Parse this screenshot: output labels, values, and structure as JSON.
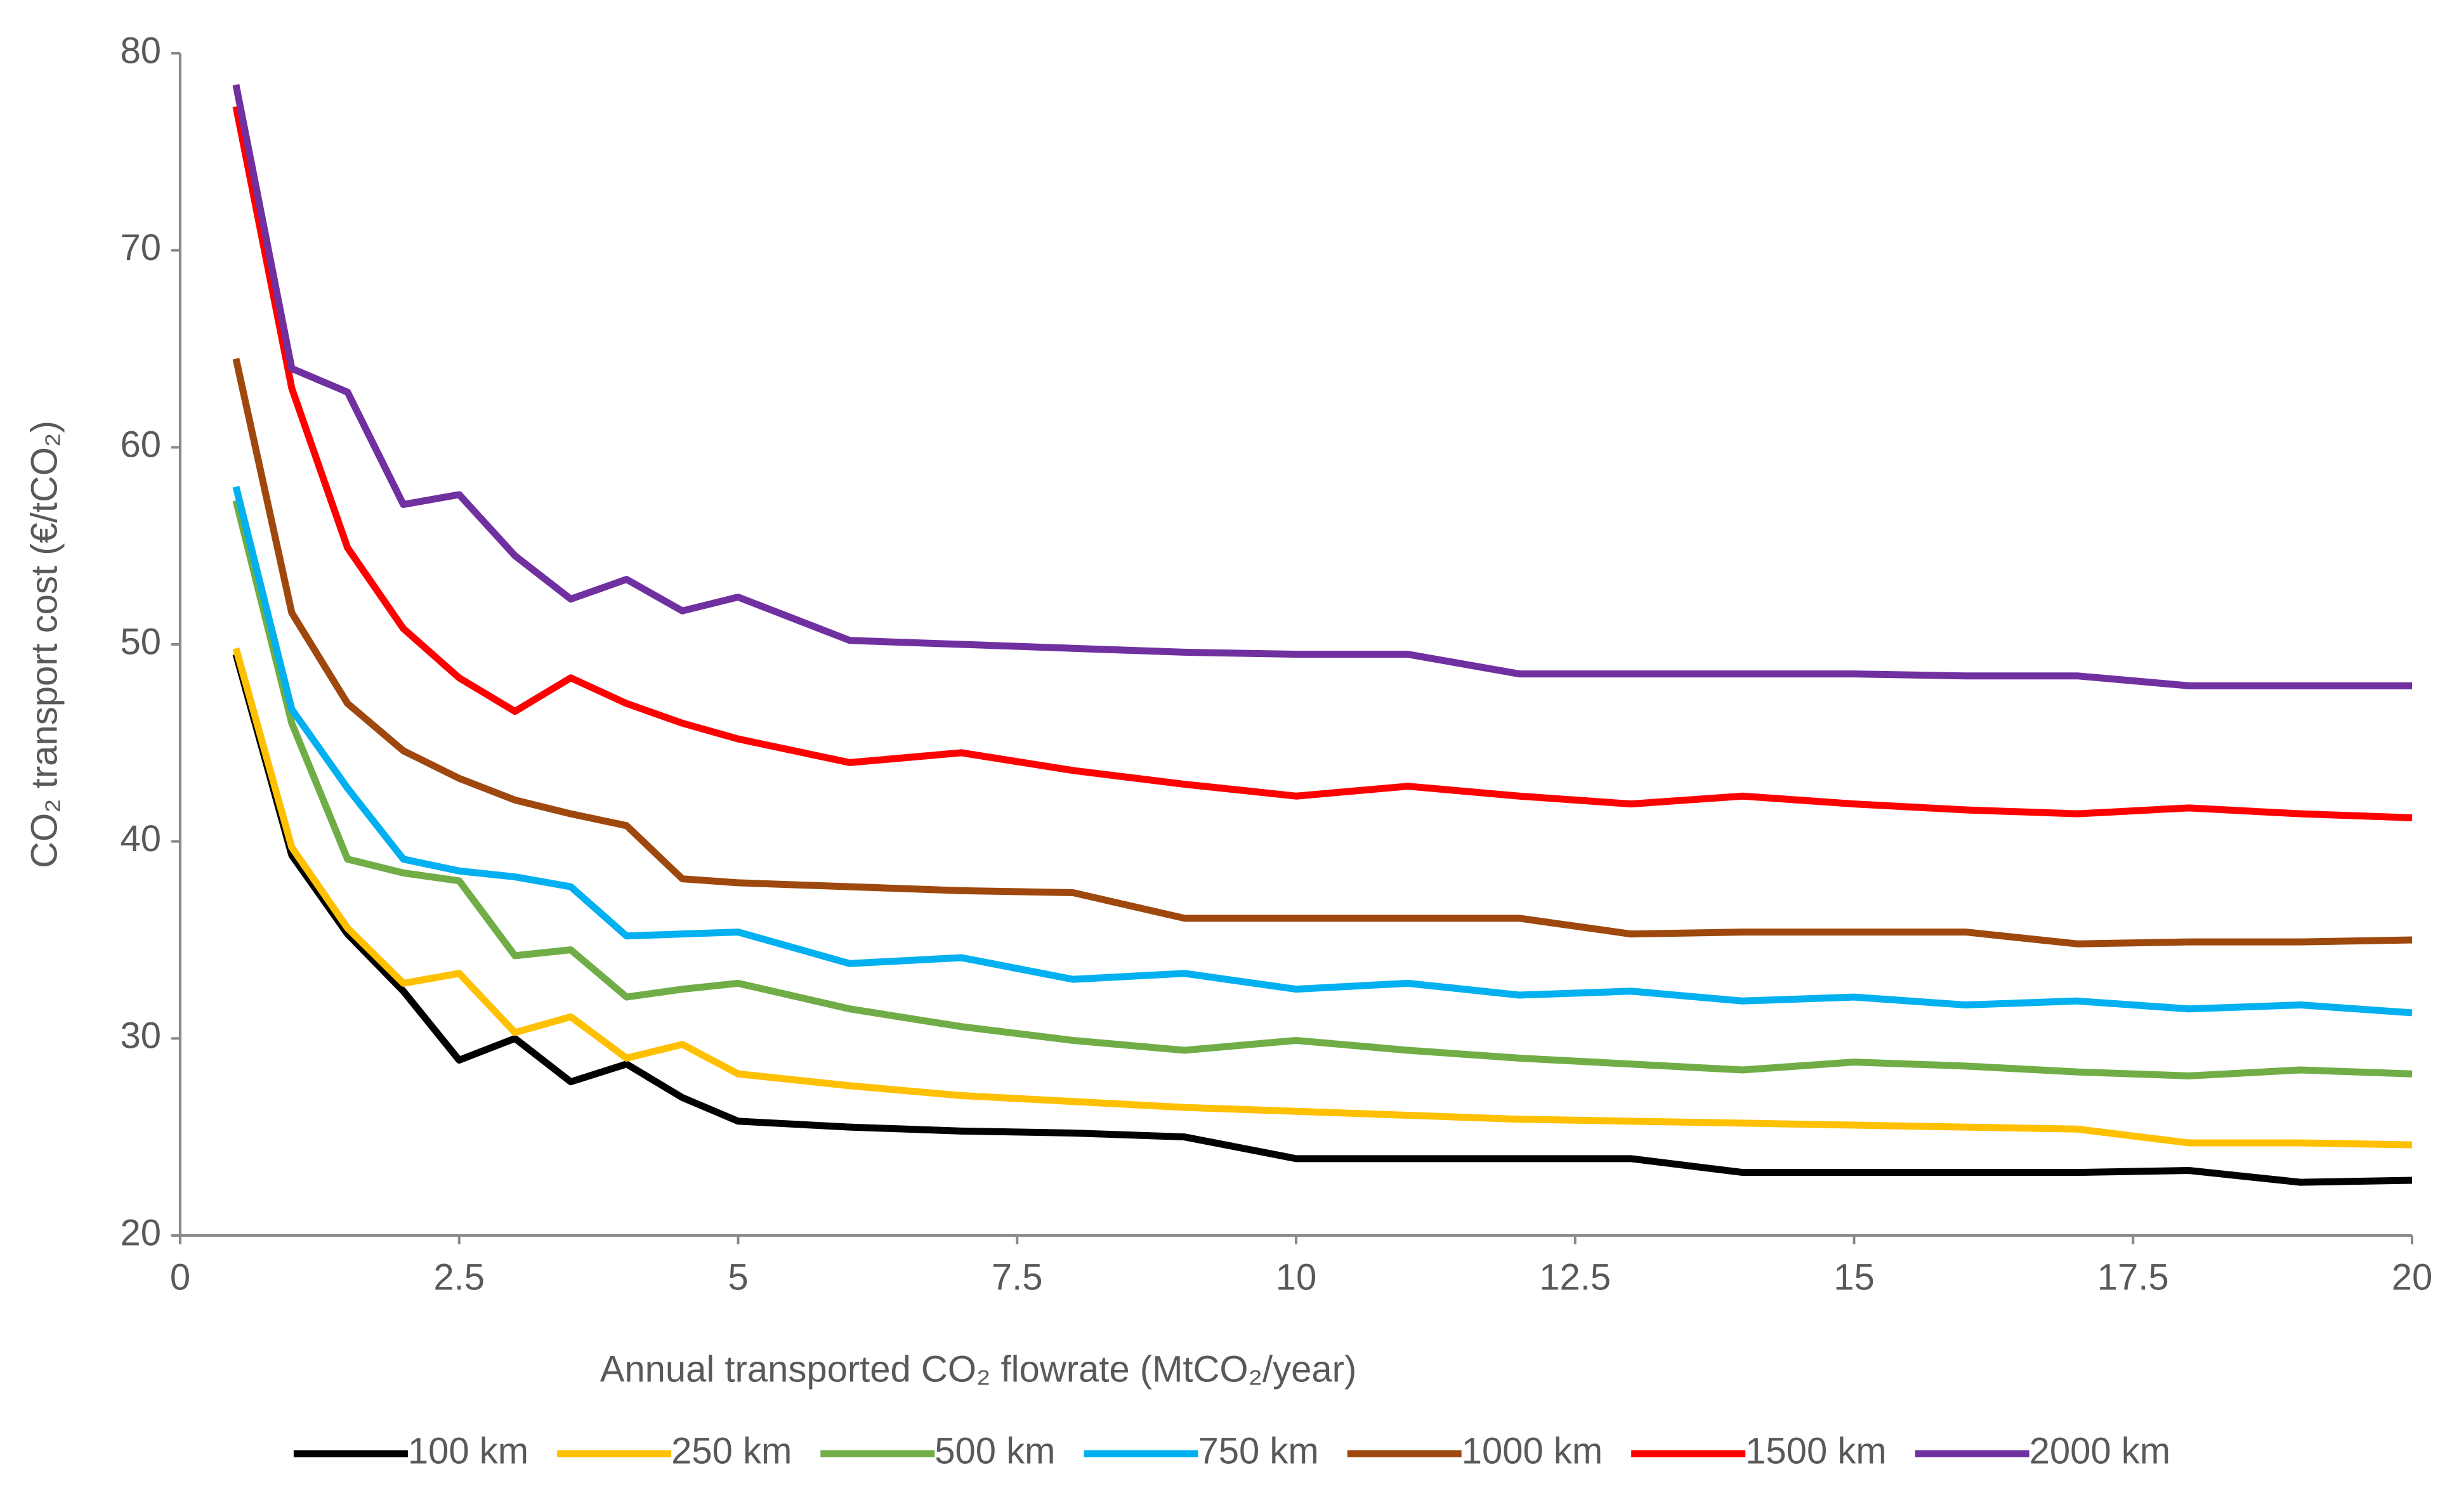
{
  "chart_data": {
    "type": "line",
    "x_label": "Annual transported CO₂ flowrate (MtCO₂/year)",
    "y_label": "CO₂ transport cost (€/tCO₂)",
    "x": [
      0.5,
      1,
      1.5,
      2,
      2.5,
      3,
      3.5,
      4,
      4.5,
      5,
      6,
      7,
      8,
      9,
      10,
      11,
      12,
      13,
      14,
      15,
      16,
      17,
      18,
      19,
      20
    ],
    "series": [
      {
        "name": "100 km",
        "color": "#000000",
        "values": [
          49.5,
          39.3,
          35.3,
          32.4,
          28.9,
          30.0,
          27.8,
          28.7,
          27.0,
          25.8,
          25.5,
          25.3,
          25.2,
          25.0,
          23.9,
          23.9,
          23.9,
          23.9,
          23.2,
          23.2,
          23.2,
          23.2,
          23.3,
          22.7,
          22.8
        ]
      },
      {
        "name": "250 km",
        "color": "#ffc000",
        "values": [
          49.8,
          39.7,
          35.6,
          32.8,
          33.3,
          30.3,
          31.1,
          29.0,
          29.7,
          28.2,
          27.6,
          27.1,
          26.8,
          26.5,
          26.3,
          26.1,
          25.9,
          25.8,
          25.7,
          25.6,
          25.5,
          25.4,
          24.7,
          24.7,
          24.6
        ]
      },
      {
        "name": "500 km",
        "color": "#70ad47",
        "values": [
          57.3,
          46.0,
          39.1,
          38.4,
          38.0,
          34.2,
          34.5,
          32.1,
          32.5,
          32.8,
          31.5,
          30.6,
          29.9,
          29.4,
          29.9,
          29.4,
          29.0,
          28.7,
          28.4,
          28.8,
          28.6,
          28.3,
          28.1,
          28.4,
          28.2
        ]
      },
      {
        "name": "750 km",
        "color": "#00b0f0",
        "values": [
          58.0,
          46.7,
          42.7,
          39.1,
          38.5,
          38.2,
          37.7,
          35.2,
          35.3,
          35.4,
          33.8,
          34.1,
          33.0,
          33.3,
          32.5,
          32.8,
          32.2,
          32.4,
          31.9,
          32.1,
          31.7,
          31.9,
          31.5,
          31.7,
          31.3
        ]
      },
      {
        "name": "1000 km",
        "color": "#9e480e",
        "values": [
          64.5,
          51.6,
          47.0,
          44.6,
          43.2,
          42.1,
          41.4,
          40.8,
          38.1,
          37.9,
          37.7,
          37.5,
          37.4,
          36.1,
          36.1,
          36.1,
          36.1,
          35.3,
          35.4,
          35.4,
          35.4,
          34.8,
          34.9,
          34.9,
          35.0
        ]
      },
      {
        "name": "1500 km",
        "color": "#ff0000",
        "values": [
          77.3,
          63.0,
          54.9,
          50.8,
          48.3,
          46.6,
          48.3,
          47.0,
          46.0,
          45.2,
          44.0,
          44.5,
          43.6,
          42.9,
          42.3,
          42.8,
          42.3,
          41.9,
          42.3,
          41.9,
          41.6,
          41.4,
          41.7,
          41.4,
          41.2
        ]
      },
      {
        "name": "2000 km",
        "color": "#7030a0",
        "values": [
          78.4,
          64.0,
          62.8,
          57.1,
          57.6,
          54.5,
          52.3,
          53.3,
          51.7,
          52.4,
          50.2,
          50.0,
          49.8,
          49.6,
          49.5,
          49.5,
          48.5,
          48.5,
          48.5,
          48.5,
          48.4,
          48.4,
          47.9,
          47.9,
          47.9
        ]
      }
    ],
    "xlim": [
      0,
      20
    ],
    "ylim": [
      20,
      80
    ],
    "xticks": [
      0,
      2.5,
      5,
      7.5,
      10,
      12.5,
      15,
      17.5,
      20
    ],
    "yticks": [
      20,
      30,
      40,
      50,
      60,
      70,
      80
    ],
    "grid": false,
    "legend": "bottom"
  }
}
